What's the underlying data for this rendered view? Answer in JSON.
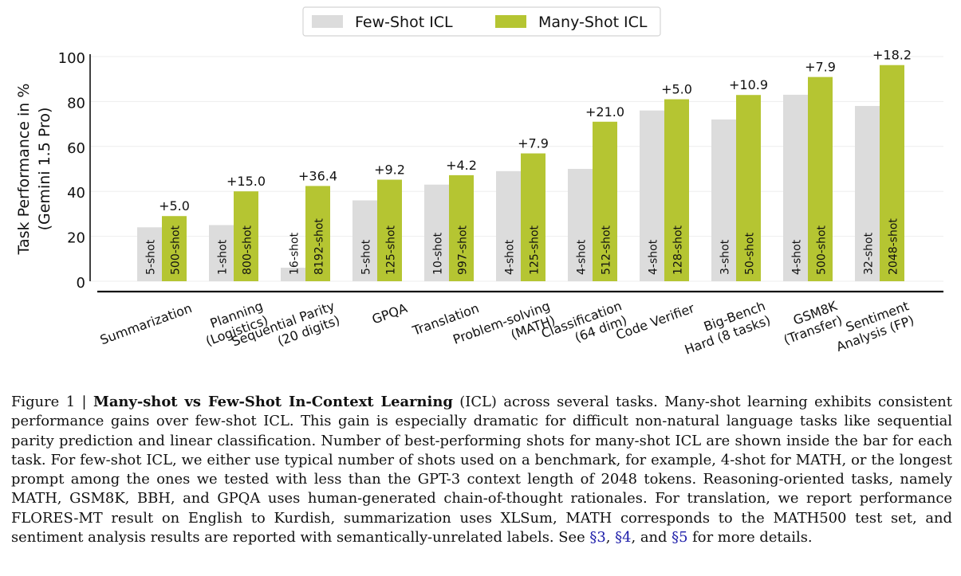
{
  "chart_data": {
    "type": "bar",
    "ylabel": "Task Performance in %\n(Gemini 1.5 Pro)",
    "ylim": [
      0,
      100
    ],
    "yticks": [
      0,
      20,
      40,
      60,
      80,
      100
    ],
    "legend_placement": "top-center",
    "grid": true,
    "categories": [
      "Summarization",
      "Planning\n(Logistics)",
      "Sequential Parity\n(20 digits)",
      "GPQA",
      "Translation",
      "Problem-solving\n(MATH)",
      "Classification\n(64 dim)",
      "Code Verifier",
      "Big-Bench\nHard (8 tasks)",
      "GSM8K\n(Transfer)",
      "Sentiment\nAnalysis (FP)"
    ],
    "series": [
      {
        "name": "Few-Shot ICL",
        "color": "#dcdcdc",
        "values": [
          24,
          25,
          6,
          36,
          43,
          49,
          50,
          76,
          72,
          83,
          78
        ],
        "shot_labels": [
          "5-shot",
          "1-shot",
          "16-shot",
          "5-shot",
          "10-shot",
          "4-shot",
          "4-shot",
          "4-shot",
          "3-shot",
          "4-shot",
          "32-shot"
        ]
      },
      {
        "name": "Many-Shot ICL",
        "color": "#b5c532",
        "values": [
          29,
          40,
          42.4,
          45.2,
          47.2,
          56.9,
          71,
          81,
          82.9,
          90.9,
          96.2
        ],
        "shot_labels": [
          "500-shot",
          "800-shot",
          "8192-shot",
          "125-shot",
          "997-shot",
          "125-shot",
          "512-shot",
          "128-shot",
          "50-shot",
          "500-shot",
          "2048-shot"
        ]
      }
    ],
    "gain_labels": [
      "+5.0",
      "+15.0",
      "+36.4",
      "+9.2",
      "+4.2",
      "+7.9",
      "+21.0",
      "+5.0",
      "+10.9",
      "+7.9",
      "+18.2"
    ]
  },
  "caption": {
    "figure_label": "Figure 1 | ",
    "title": "Many-shot vs Few-Shot In-Context Learning",
    "body_before_refs": " (ICL) across several tasks. Many-shot learning exhibits consistent performance gains over few-shot ICL. This gain is especially dramatic for difficult non-natural language tasks like sequential parity prediction and linear classification. Number of best-performing shots for many-shot ICL are shown inside the bar for each task. For few-shot ICL, we either use typical number of shots used on a benchmark, for example, 4-shot for MATH, or the longest prompt among the ones we tested with less than the GPT-3 context length of 2048 tokens. Reasoning-oriented tasks, namely MATH, GSM8K, BBH, and GPQA uses human-generated chain-of-thought rationales. For translation, we report performance FLORES-MT result on English to Kurdish, summarization uses XLSum, MATH corresponds to the MATH500 test set, and sentiment analysis results are reported with semantically-unrelated labels. See ",
    "ref1": "§3",
    "sep1": ", ",
    "ref2": "§4",
    "sep2": ", and ",
    "ref3": "§5",
    "tail": " for more details."
  }
}
